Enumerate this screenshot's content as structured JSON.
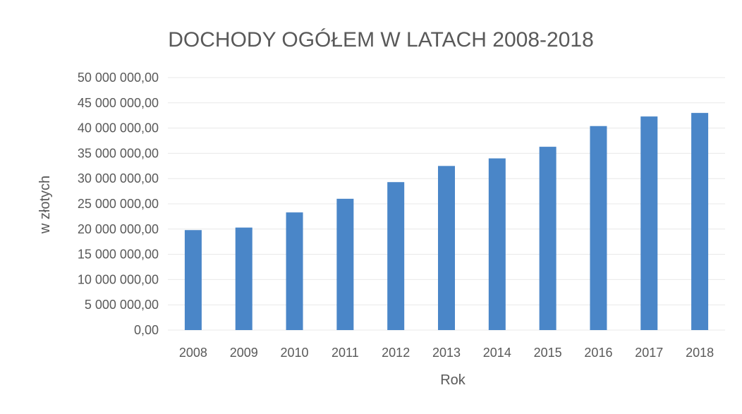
{
  "chart_data": {
    "type": "bar",
    "title": "DOCHODY OGÓŁEM W LATACH 2008-2018",
    "xlabel": "Rok",
    "ylabel": "w złotych",
    "categories": [
      "2008",
      "2009",
      "2010",
      "2011",
      "2012",
      "2013",
      "2014",
      "2015",
      "2016",
      "2017",
      "2018"
    ],
    "values": [
      19800000,
      20300000,
      23300000,
      26000000,
      29300000,
      32500000,
      34000000,
      36300000,
      40400000,
      42300000,
      43000000
    ],
    "ylim": [
      0,
      50000000
    ],
    "yticks": [
      0,
      5000000,
      10000000,
      15000000,
      20000000,
      25000000,
      30000000,
      35000000,
      40000000,
      45000000,
      50000000
    ],
    "ytick_labels": [
      "0,00",
      "5 000 000,00",
      "10 000 000,00",
      "15 000 000,00",
      "20 000 000,00",
      "25 000 000,00",
      "30 000 000,00",
      "35 000 000,00",
      "40 000 000,00",
      "45 000 000,00",
      "50 000 000,00"
    ],
    "grid": true,
    "legend": "none",
    "colors": {
      "bar": "#4a86c8",
      "text": "#595959",
      "grid": "#e8e8e8"
    }
  }
}
